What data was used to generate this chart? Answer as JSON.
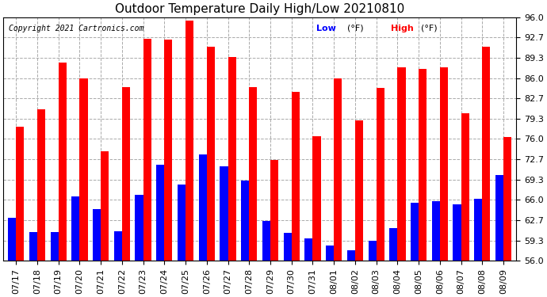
{
  "title": "Outdoor Temperature Daily High/Low 20210810",
  "copyright": "Copyright 2021 Cartronics.com",
  "legend_low": "Low",
  "legend_high": "High",
  "legend_unit": "(°F)",
  "ylim": [
    56.0,
    96.0
  ],
  "ybase": 56.0,
  "yticks": [
    56.0,
    59.3,
    62.7,
    66.0,
    69.3,
    72.7,
    76.0,
    79.3,
    82.7,
    86.0,
    89.3,
    92.7,
    96.0
  ],
  "categories": [
    "07/17",
    "07/18",
    "07/19",
    "07/20",
    "07/21",
    "07/22",
    "07/23",
    "07/24",
    "07/25",
    "07/26",
    "07/27",
    "07/28",
    "07/29",
    "07/30",
    "07/31",
    "08/01",
    "08/02",
    "08/03",
    "08/04",
    "08/05",
    "08/06",
    "08/07",
    "08/08",
    "08/09"
  ],
  "high": [
    78.0,
    80.8,
    88.5,
    86.0,
    73.9,
    84.5,
    92.5,
    92.3,
    95.5,
    91.2,
    89.5,
    84.5,
    72.5,
    83.7,
    76.4,
    85.9,
    79.1,
    84.4,
    87.8,
    87.5,
    87.7,
    80.2,
    91.2,
    76.3
  ],
  "low": [
    63.0,
    60.7,
    60.7,
    66.5,
    64.5,
    60.8,
    66.8,
    71.8,
    68.5,
    73.5,
    71.5,
    69.2,
    62.5,
    60.6,
    59.7,
    58.5,
    57.7,
    59.3,
    61.4,
    65.5,
    65.8,
    65.2,
    66.2,
    70.1
  ],
  "high_color": "#FF0000",
  "low_color": "#0000FF",
  "background_color": "#FFFFFF",
  "grid_color": "#AAAAAA",
  "title_fontsize": 11,
  "tick_fontsize": 8,
  "copyright_fontsize": 7,
  "legend_fontsize": 8,
  "bar_width": 0.38
}
